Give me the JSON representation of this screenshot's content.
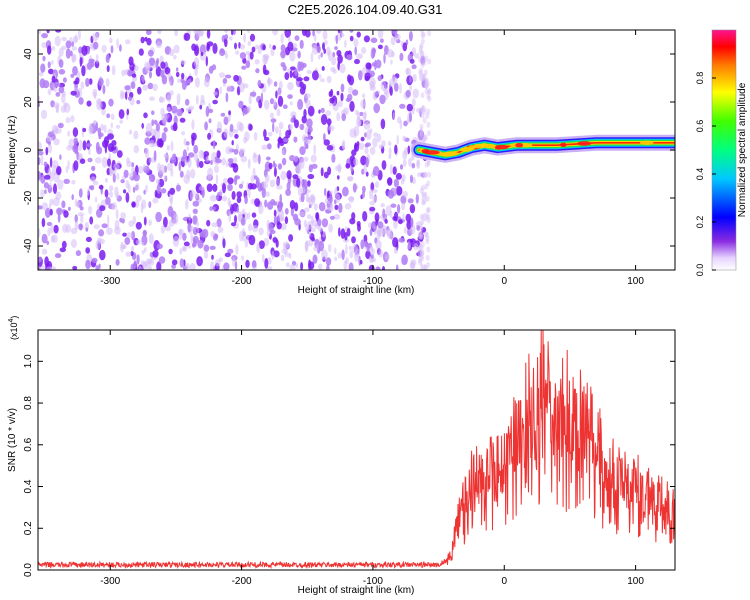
{
  "title": "C2E5.2026.104.09.40.G31",
  "colors": {
    "snr_line": "#ee3333",
    "noise_purple": "#7a1cf0",
    "noise_light": "#d6bcf8",
    "axis": "#000000",
    "background": "#ffffff"
  },
  "chart_data": [
    {
      "type": "heatmap",
      "name": "spectrogram",
      "title": "C2E5.2026.104.09.40.G31",
      "xlabel": "Height of straight line (km)",
      "ylabel": "Frequency (Hz)",
      "xlim": [
        -355,
        130
      ],
      "ylim": [
        -50,
        50
      ],
      "xticks": [
        -300,
        -200,
        -100,
        0,
        100
      ],
      "yticks": [
        -40,
        -20,
        0,
        20,
        40
      ],
      "noise_region_km": [
        -355,
        -60
      ],
      "signal_start_km": -65,
      "signal_trace_freq_hz": [
        {
          "x": -65,
          "y": 0
        },
        {
          "x": -55,
          "y": -1
        },
        {
          "x": -45,
          "y": -2
        },
        {
          "x": -35,
          "y": -1
        },
        {
          "x": -25,
          "y": 1
        },
        {
          "x": -15,
          "y": 2
        },
        {
          "x": -5,
          "y": 1
        },
        {
          "x": 10,
          "y": 2
        },
        {
          "x": 40,
          "y": 2
        },
        {
          "x": 70,
          "y": 3
        },
        {
          "x": 100,
          "y": 3
        },
        {
          "x": 130,
          "y": 3
        }
      ],
      "colorbar": {
        "label": "Normalized spectral amplitude",
        "range": [
          0.0,
          1.0
        ],
        "ticks": [
          "0.0",
          "0.2",
          "0.4",
          "0.6",
          "0.8"
        ]
      }
    },
    {
      "type": "line",
      "name": "snr",
      "xlabel": "Height of straight line (km)",
      "ylabel": "SNR (10 * v/v)",
      "y_multiplier": "(x10",
      "y_multiplier_exp": "4",
      "y_multiplier_close": ")",
      "xlim": [
        -355,
        130
      ],
      "ylim": [
        0.0,
        1.15
      ],
      "xticks": [
        -300,
        -200,
        -100,
        0,
        100
      ],
      "yticks": [
        "0.0",
        "0.2",
        "0.4",
        "0.6",
        "0.8",
        "1.0"
      ],
      "series": [
        {
          "name": "SNR",
          "envelope": [
            {
              "x": -355,
              "y": 0.03
            },
            {
              "x": -100,
              "y": 0.03
            },
            {
              "x": -50,
              "y": 0.03
            },
            {
              "x": -45,
              "y": 0.05
            },
            {
              "x": -40,
              "y": 0.12
            },
            {
              "x": -35,
              "y": 0.28
            },
            {
              "x": -30,
              "y": 0.4
            },
            {
              "x": -25,
              "y": 0.52
            },
            {
              "x": -20,
              "y": 0.56
            },
            {
              "x": -15,
              "y": 0.6
            },
            {
              "x": -10,
              "y": 0.62
            },
            {
              "x": -5,
              "y": 0.62
            },
            {
              "x": 0,
              "y": 0.68
            },
            {
              "x": 5,
              "y": 0.75
            },
            {
              "x": 10,
              "y": 0.78
            },
            {
              "x": 15,
              "y": 0.85
            },
            {
              "x": 20,
              "y": 0.92
            },
            {
              "x": 25,
              "y": 1.0
            },
            {
              "x": 30,
              "y": 1.05
            },
            {
              "x": 35,
              "y": 0.92
            },
            {
              "x": 40,
              "y": 0.88
            },
            {
              "x": 45,
              "y": 0.9
            },
            {
              "x": 50,
              "y": 0.93
            },
            {
              "x": 55,
              "y": 0.95
            },
            {
              "x": 60,
              "y": 0.88
            },
            {
              "x": 65,
              "y": 0.78
            },
            {
              "x": 70,
              "y": 0.72
            },
            {
              "x": 75,
              "y": 0.62
            },
            {
              "x": 80,
              "y": 0.6
            },
            {
              "x": 85,
              "y": 0.52
            },
            {
              "x": 90,
              "y": 0.52
            },
            {
              "x": 95,
              "y": 0.49
            },
            {
              "x": 100,
              "y": 0.48
            },
            {
              "x": 105,
              "y": 0.46
            },
            {
              "x": 110,
              "y": 0.45
            },
            {
              "x": 115,
              "y": 0.44
            },
            {
              "x": 120,
              "y": 0.43
            },
            {
              "x": 125,
              "y": 0.35
            },
            {
              "x": 130,
              "y": 0.38
            }
          ]
        }
      ]
    }
  ]
}
